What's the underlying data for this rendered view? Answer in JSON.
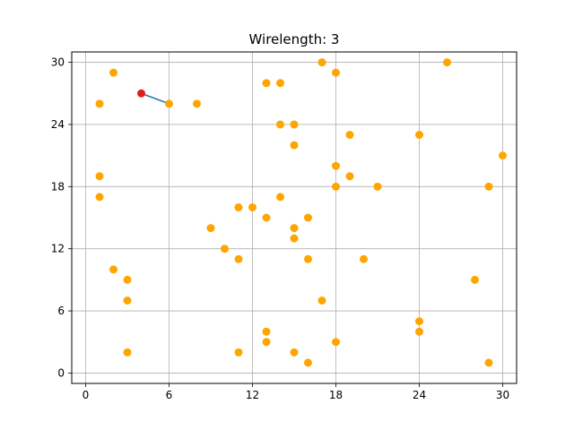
{
  "chart_data": {
    "type": "scatter",
    "title": "Wirelength: 3",
    "xlabel": "",
    "ylabel": "",
    "xlim": [
      -1,
      31
    ],
    "ylim": [
      -1,
      31
    ],
    "xticks": [
      0,
      6,
      12,
      18,
      24,
      30
    ],
    "yticks": [
      0,
      6,
      12,
      18,
      24,
      30
    ],
    "grid": true,
    "colors": {
      "pins": "#FFA500",
      "source": "#E31A1C",
      "wire": "#1F77B4",
      "grid": "#B0B0B0"
    },
    "wires": [
      {
        "x": [
          4,
          6
        ],
        "y": [
          27,
          26
        ]
      }
    ],
    "source_points": [
      {
        "x": 4,
        "y": 27
      }
    ],
    "points": [
      {
        "x": 2,
        "y": 29
      },
      {
        "x": 1,
        "y": 26
      },
      {
        "x": 6,
        "y": 26
      },
      {
        "x": 8,
        "y": 26
      },
      {
        "x": 13,
        "y": 28
      },
      {
        "x": 14,
        "y": 28
      },
      {
        "x": 17,
        "y": 30
      },
      {
        "x": 18,
        "y": 29
      },
      {
        "x": 26,
        "y": 30
      },
      {
        "x": 14,
        "y": 24
      },
      {
        "x": 15,
        "y": 24
      },
      {
        "x": 19,
        "y": 23
      },
      {
        "x": 24,
        "y": 23
      },
      {
        "x": 15,
        "y": 22
      },
      {
        "x": 30,
        "y": 21
      },
      {
        "x": 1,
        "y": 19
      },
      {
        "x": 18,
        "y": 20
      },
      {
        "x": 19,
        "y": 19
      },
      {
        "x": 18,
        "y": 18
      },
      {
        "x": 21,
        "y": 18
      },
      {
        "x": 29,
        "y": 18
      },
      {
        "x": 1,
        "y": 17
      },
      {
        "x": 14,
        "y": 17
      },
      {
        "x": 11,
        "y": 16
      },
      {
        "x": 12,
        "y": 16
      },
      {
        "x": 13,
        "y": 15
      },
      {
        "x": 16,
        "y": 15
      },
      {
        "x": 9,
        "y": 14
      },
      {
        "x": 15,
        "y": 14
      },
      {
        "x": 15,
        "y": 13
      },
      {
        "x": 10,
        "y": 12
      },
      {
        "x": 11,
        "y": 11
      },
      {
        "x": 16,
        "y": 11
      },
      {
        "x": 20,
        "y": 11
      },
      {
        "x": 2,
        "y": 10
      },
      {
        "x": 3,
        "y": 9
      },
      {
        "x": 28,
        "y": 9
      },
      {
        "x": 3,
        "y": 7
      },
      {
        "x": 17,
        "y": 7
      },
      {
        "x": 24,
        "y": 5
      },
      {
        "x": 13,
        "y": 4
      },
      {
        "x": 24,
        "y": 4
      },
      {
        "x": 13,
        "y": 3
      },
      {
        "x": 18,
        "y": 3
      },
      {
        "x": 3,
        "y": 2
      },
      {
        "x": 11,
        "y": 2
      },
      {
        "x": 15,
        "y": 2
      },
      {
        "x": 16,
        "y": 1
      },
      {
        "x": 29,
        "y": 1
      }
    ]
  }
}
